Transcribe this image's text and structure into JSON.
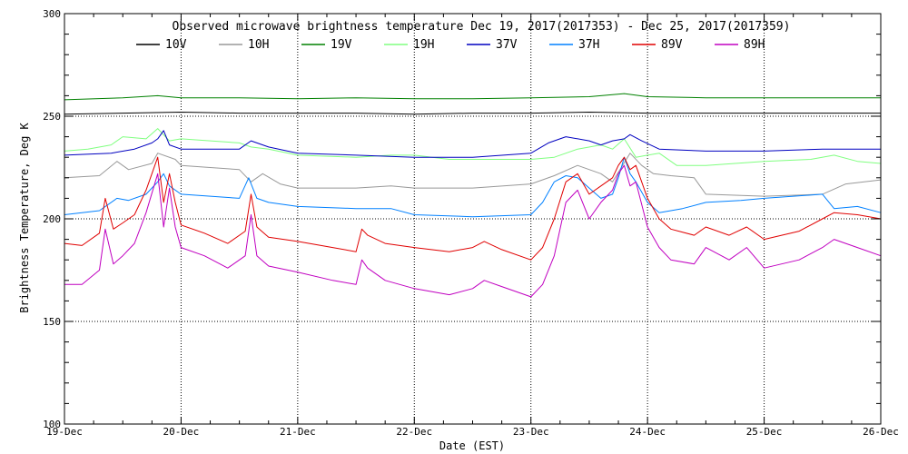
{
  "chart_data": {
    "type": "line",
    "title": "Observed microwave brightness temperature Dec 19, 2017(2017353) - Dec 25, 2017(2017359)",
    "xlabel": "Date (EST)",
    "ylabel": "Brightness Temperature, Deg K",
    "xlim": [
      0,
      7
    ],
    "ylim": [
      100,
      300
    ],
    "x_categories": [
      "19-Dec",
      "20-Dec",
      "21-Dec",
      "22-Dec",
      "23-Dec",
      "24-Dec",
      "25-Dec",
      "26-Dec"
    ],
    "y_ticks": [
      100,
      150,
      200,
      250,
      300
    ],
    "grid": true,
    "legend_position": "top",
    "series": [
      {
        "name": "10V",
        "color": "#000000",
        "x": [
          0,
          0.5,
          1,
          1.5,
          2,
          2.5,
          3,
          3.5,
          4,
          4.5,
          5,
          5.5,
          6,
          6.5,
          7
        ],
        "values": [
          251,
          251.5,
          252,
          251.5,
          251.5,
          251.5,
          251,
          251.5,
          251.5,
          252,
          251.5,
          251.5,
          251.5,
          251.5,
          251.5
        ]
      },
      {
        "name": "10H",
        "color": "#999999",
        "x": [
          0,
          0.3,
          0.45,
          0.55,
          0.75,
          0.8,
          0.95,
          1,
          1.25,
          1.5,
          1.6,
          1.7,
          1.85,
          2,
          2.5,
          2.8,
          3,
          3.5,
          4,
          4.2,
          4.4,
          4.6,
          4.7,
          4.85,
          4.95,
          5.05,
          5.2,
          5.4,
          5.5,
          6,
          6.5,
          6.7,
          7
        ],
        "values": [
          220,
          221,
          228,
          224,
          227,
          232,
          229,
          226,
          225,
          224,
          218,
          222,
          217,
          215,
          215,
          216,
          215,
          215,
          217,
          221,
          226,
          222,
          218,
          232,
          226,
          222,
          221,
          220,
          212,
          211,
          212,
          217,
          219
        ]
      },
      {
        "name": "19V",
        "color": "#008000",
        "x": [
          0,
          0.5,
          0.8,
          1,
          1.5,
          2,
          2.5,
          3,
          3.5,
          4,
          4.5,
          4.8,
          5,
          5.5,
          6,
          6.5,
          7
        ],
        "values": [
          258,
          259,
          260,
          259,
          259,
          258.5,
          259,
          258.5,
          258.5,
          259,
          259.5,
          261,
          259.5,
          259,
          259,
          259,
          259
        ]
      },
      {
        "name": "19H",
        "color": "#80ff80",
        "x": [
          0,
          0.2,
          0.4,
          0.5,
          0.7,
          0.8,
          0.9,
          1,
          1.5,
          1.6,
          1.75,
          2,
          2.5,
          2.8,
          3,
          3.3,
          3.5,
          4,
          4.2,
          4.4,
          4.6,
          4.7,
          4.8,
          4.9,
          5,
          5.1,
          5.25,
          5.5,
          6,
          6.4,
          6.6,
          6.8,
          7
        ],
        "values": [
          233,
          234,
          236,
          240,
          239,
          244,
          238,
          239,
          237,
          235,
          234,
          231,
          230,
          231,
          231,
          229,
          229,
          229,
          230,
          234,
          236,
          234,
          239,
          230,
          231,
          232,
          226,
          226,
          228,
          229,
          231,
          228,
          227
        ]
      },
      {
        "name": "37V",
        "color": "#0000c0",
        "x": [
          0,
          0.4,
          0.6,
          0.75,
          0.8,
          0.85,
          0.9,
          1,
          1.5,
          1.6,
          1.75,
          2,
          2.5,
          3,
          3.5,
          4,
          4.15,
          4.3,
          4.5,
          4.6,
          4.7,
          4.8,
          4.85,
          4.95,
          5.1,
          5.5,
          6,
          6.5,
          7
        ],
        "values": [
          231,
          232,
          234,
          237,
          239,
          243,
          236,
          234,
          234,
          238,
          235,
          232,
          231,
          230,
          230,
          232,
          237,
          240,
          238,
          236,
          238,
          239,
          241,
          238,
          234,
          233,
          233,
          234,
          234
        ]
      },
      {
        "name": "37H",
        "color": "#0080ff",
        "x": [
          0,
          0.3,
          0.45,
          0.55,
          0.7,
          0.8,
          0.85,
          0.9,
          1,
          1.5,
          1.58,
          1.65,
          1.75,
          2,
          2.5,
          2.8,
          3,
          3.5,
          4,
          4.1,
          4.2,
          4.3,
          4.4,
          4.5,
          4.6,
          4.7,
          4.75,
          4.8,
          4.85,
          4.9,
          5,
          5.1,
          5.3,
          5.5,
          5.8,
          6,
          6.5,
          6.6,
          6.8,
          7
        ],
        "values": [
          202,
          204,
          210,
          209,
          212,
          218,
          222,
          216,
          212,
          210,
          220,
          210,
          208,
          206,
          205,
          205,
          202,
          201,
          202,
          208,
          218,
          221,
          220,
          215,
          210,
          212,
          220,
          230,
          222,
          218,
          208,
          203,
          205,
          208,
          209,
          210,
          212,
          205,
          206,
          203
        ]
      },
      {
        "name": "89V",
        "color": "#e00000",
        "x": [
          0,
          0.15,
          0.3,
          0.35,
          0.42,
          0.5,
          0.6,
          0.7,
          0.8,
          0.85,
          0.9,
          0.95,
          1,
          1.2,
          1.4,
          1.55,
          1.6,
          1.65,
          1.75,
          2,
          2.3,
          2.5,
          2.55,
          2.6,
          2.75,
          3,
          3.3,
          3.5,
          3.6,
          3.75,
          4,
          4.1,
          4.2,
          4.3,
          4.4,
          4.5,
          4.6,
          4.7,
          4.75,
          4.8,
          4.85,
          4.9,
          5,
          5.1,
          5.2,
          5.4,
          5.5,
          5.7,
          5.85,
          6,
          6.3,
          6.5,
          6.6,
          6.8,
          7
        ],
        "values": [
          188,
          187,
          193,
          210,
          195,
          198,
          202,
          214,
          230,
          208,
          222,
          208,
          197,
          193,
          188,
          194,
          212,
          196,
          191,
          189,
          186,
          184,
          195,
          192,
          188,
          186,
          184,
          186,
          189,
          185,
          180,
          186,
          200,
          218,
          222,
          212,
          216,
          220,
          226,
          230,
          224,
          226,
          210,
          200,
          195,
          192,
          196,
          192,
          196,
          190,
          194,
          200,
          203,
          202,
          200
        ]
      },
      {
        "name": "89H",
        "color": "#c000c0",
        "x": [
          0,
          0.15,
          0.3,
          0.35,
          0.42,
          0.5,
          0.6,
          0.7,
          0.8,
          0.85,
          0.9,
          0.95,
          1,
          1.2,
          1.4,
          1.55,
          1.6,
          1.65,
          1.75,
          2,
          2.3,
          2.5,
          2.55,
          2.6,
          2.75,
          3,
          3.3,
          3.5,
          3.6,
          3.75,
          4,
          4.1,
          4.2,
          4.3,
          4.4,
          4.5,
          4.6,
          4.7,
          4.75,
          4.8,
          4.85,
          4.9,
          5,
          5.1,
          5.2,
          5.4,
          5.5,
          5.7,
          5.85,
          6,
          6.3,
          6.5,
          6.6,
          6.8,
          7
        ],
        "values": [
          168,
          168,
          175,
          195,
          178,
          182,
          188,
          203,
          222,
          196,
          215,
          196,
          186,
          182,
          176,
          182,
          202,
          182,
          177,
          174,
          170,
          168,
          180,
          176,
          170,
          166,
          163,
          166,
          170,
          167,
          162,
          168,
          182,
          208,
          214,
          200,
          208,
          214,
          222,
          226,
          216,
          218,
          196,
          186,
          180,
          178,
          186,
          180,
          186,
          176,
          180,
          186,
          190,
          186,
          182
        ]
      }
    ]
  }
}
